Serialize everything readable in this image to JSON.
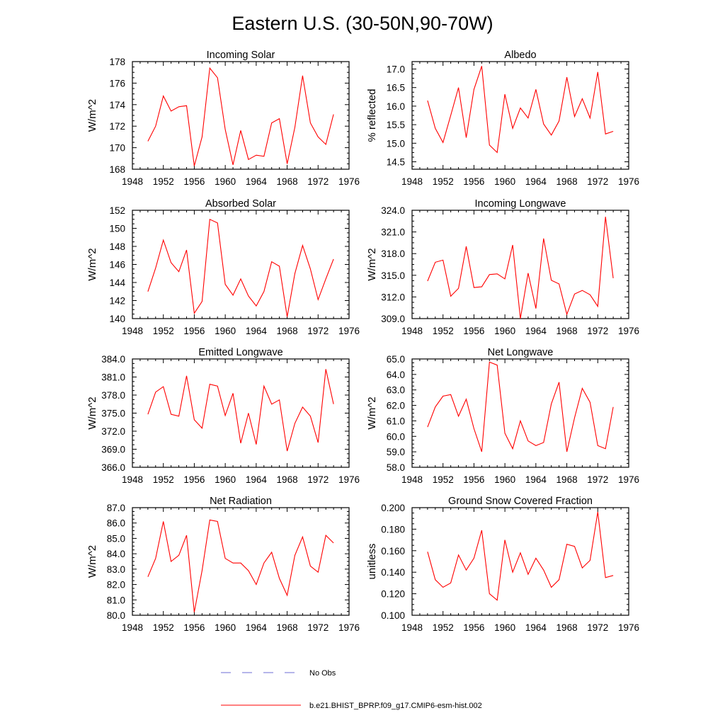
{
  "title": "Eastern U.S. (30-50N,90-70W)",
  "colors": {
    "series": "#ff0000",
    "obs": "#6b6bd6",
    "axis": "#000000"
  },
  "chart_data": [
    {
      "type": "line",
      "title": "Incoming Solar",
      "ylabel": "W/m^2",
      "xlim": [
        1948,
        1976
      ],
      "ylim": [
        168,
        178
      ],
      "x_ticks": [
        "1948",
        "1952",
        "1956",
        "1960",
        "1964",
        "1968",
        "1972",
        "1976"
      ],
      "y_ticks": [
        "168",
        "170",
        "172",
        "174",
        "176",
        "178"
      ],
      "x": [
        1950,
        1951,
        1952,
        1953,
        1954,
        1955,
        1956,
        1957,
        1958,
        1959,
        1960,
        1961,
        1962,
        1963,
        1964,
        1965,
        1966,
        1967,
        1968,
        1969,
        1970,
        1971,
        1972,
        1973,
        1974
      ],
      "values": [
        170.6,
        172.0,
        174.8,
        173.4,
        173.8,
        173.9,
        168.3,
        171.0,
        177.4,
        176.5,
        171.7,
        168.4,
        171.6,
        168.9,
        169.3,
        169.2,
        172.3,
        172.7,
        168.5,
        171.9,
        176.7,
        172.3,
        171.0,
        170.3,
        173.1
      ]
    },
    {
      "type": "line",
      "title": "Albedo",
      "ylabel": "% reflected",
      "xlim": [
        1948,
        1976
      ],
      "ylim": [
        14.3,
        17.2
      ],
      "x_ticks": [
        "1948",
        "1952",
        "1956",
        "1960",
        "1964",
        "1968",
        "1972",
        "1976"
      ],
      "y_ticks": [
        "14.5",
        "15.0",
        "15.5",
        "16.0",
        "16.5",
        "17.0"
      ],
      "x": [
        1950,
        1951,
        1952,
        1953,
        1954,
        1955,
        1956,
        1957,
        1958,
        1959,
        1960,
        1961,
        1962,
        1963,
        1964,
        1965,
        1966,
        1967,
        1968,
        1969,
        1970,
        1971,
        1972,
        1973,
        1974
      ],
      "values": [
        16.15,
        15.4,
        15.02,
        15.75,
        16.5,
        15.15,
        16.45,
        17.08,
        14.95,
        14.75,
        16.32,
        15.4,
        15.95,
        15.68,
        16.45,
        15.52,
        15.22,
        15.6,
        16.78,
        15.72,
        16.2,
        15.68,
        16.92,
        15.25,
        15.32
      ]
    },
    {
      "type": "line",
      "title": "Absorbed Solar",
      "ylabel": "W/m^2",
      "xlim": [
        1948,
        1976
      ],
      "ylim": [
        140,
        152
      ],
      "x_ticks": [
        "1948",
        "1952",
        "1956",
        "1960",
        "1964",
        "1968",
        "1972",
        "1976"
      ],
      "y_ticks": [
        "140",
        "142",
        "144",
        "146",
        "148",
        "150",
        "152"
      ],
      "x": [
        1950,
        1951,
        1952,
        1953,
        1954,
        1955,
        1956,
        1957,
        1958,
        1959,
        1960,
        1961,
        1962,
        1963,
        1964,
        1965,
        1966,
        1967,
        1968,
        1969,
        1970,
        1971,
        1972,
        1973,
        1974
      ],
      "values": [
        143.0,
        145.6,
        148.7,
        146.2,
        145.2,
        147.6,
        140.6,
        141.9,
        151.0,
        150.6,
        143.8,
        142.6,
        144.4,
        142.5,
        141.4,
        143.0,
        146.3,
        145.8,
        140.2,
        145.0,
        148.1,
        145.5,
        142.1,
        144.4,
        146.6
      ]
    },
    {
      "type": "line",
      "title": "Incoming Longwave",
      "ylabel": "W/m^2",
      "xlim": [
        1948,
        1976
      ],
      "ylim": [
        309,
        324
      ],
      "x_ticks": [
        "1948",
        "1952",
        "1956",
        "1960",
        "1964",
        "1968",
        "1972",
        "1976"
      ],
      "y_ticks": [
        "309.0",
        "312.0",
        "315.0",
        "318.0",
        "321.0",
        "324.0"
      ],
      "x": [
        1950,
        1951,
        1952,
        1953,
        1954,
        1955,
        1956,
        1957,
        1958,
        1959,
        1960,
        1961,
        1962,
        1963,
        1964,
        1965,
        1966,
        1967,
        1968,
        1969,
        1970,
        1971,
        1972,
        1973,
        1974
      ],
      "values": [
        314.2,
        316.8,
        317.1,
        312.1,
        313.2,
        319.0,
        313.3,
        313.4,
        315.1,
        315.2,
        314.5,
        319.2,
        309.0,
        315.3,
        310.4,
        320.1,
        314.3,
        313.8,
        309.6,
        312.4,
        312.9,
        312.3,
        310.7,
        323.1,
        314.6
      ]
    },
    {
      "type": "line",
      "title": "Emitted Longwave",
      "ylabel": "W/m^2",
      "xlim": [
        1948,
        1976
      ],
      "ylim": [
        366,
        384
      ],
      "x_ticks": [
        "1948",
        "1952",
        "1956",
        "1960",
        "1964",
        "1968",
        "1972",
        "1976"
      ],
      "y_ticks": [
        "366.0",
        "369.0",
        "372.0",
        "375.0",
        "378.0",
        "381.0",
        "384.0"
      ],
      "x": [
        1950,
        1951,
        1952,
        1953,
        1954,
        1955,
        1956,
        1957,
        1958,
        1959,
        1960,
        1961,
        1962,
        1963,
        1964,
        1965,
        1966,
        1967,
        1968,
        1969,
        1970,
        1971,
        1972,
        1973,
        1974
      ],
      "values": [
        374.8,
        378.5,
        379.4,
        374.8,
        374.5,
        381.2,
        373.9,
        372.5,
        379.8,
        379.5,
        374.6,
        378.3,
        370.0,
        375.0,
        369.8,
        379.5,
        376.5,
        377.2,
        368.7,
        373.3,
        376.0,
        374.5,
        370.1,
        382.3,
        376.5
      ]
    },
    {
      "type": "line",
      "title": "Net Longwave",
      "ylabel": "W/m^2",
      "xlim": [
        1948,
        1976
      ],
      "ylim": [
        58,
        65
      ],
      "x_ticks": [
        "1948",
        "1952",
        "1956",
        "1960",
        "1964",
        "1968",
        "1972",
        "1976"
      ],
      "y_ticks": [
        "58.0",
        "59.0",
        "60.0",
        "61.0",
        "62.0",
        "63.0",
        "64.0",
        "65.0"
      ],
      "x": [
        1950,
        1951,
        1952,
        1953,
        1954,
        1955,
        1956,
        1957,
        1958,
        1959,
        1960,
        1961,
        1962,
        1963,
        1964,
        1965,
        1966,
        1967,
        1968,
        1969,
        1970,
        1971,
        1972,
        1973,
        1974
      ],
      "values": [
        60.6,
        61.9,
        62.6,
        62.7,
        61.3,
        62.4,
        60.5,
        59.0,
        64.8,
        64.6,
        60.2,
        59.2,
        61.0,
        59.7,
        59.4,
        59.6,
        62.1,
        63.5,
        59.0,
        61.2,
        63.1,
        62.2,
        59.4,
        59.2,
        61.9
      ]
    },
    {
      "type": "line",
      "title": "Net Radiation",
      "ylabel": "W/m^2",
      "xlim": [
        1948,
        1976
      ],
      "ylim": [
        80,
        87
      ],
      "x_ticks": [
        "1948",
        "1952",
        "1956",
        "1960",
        "1964",
        "1968",
        "1972",
        "1976"
      ],
      "y_ticks": [
        "80.0",
        "81.0",
        "82.0",
        "83.0",
        "84.0",
        "85.0",
        "86.0",
        "87.0"
      ],
      "x": [
        1950,
        1951,
        1952,
        1953,
        1954,
        1955,
        1956,
        1957,
        1958,
        1959,
        1960,
        1961,
        1962,
        1963,
        1964,
        1965,
        1966,
        1967,
        1968,
        1969,
        1970,
        1971,
        1972,
        1973,
        1974
      ],
      "values": [
        82.5,
        83.7,
        86.1,
        83.5,
        83.9,
        85.2,
        80.2,
        82.9,
        86.2,
        86.1,
        83.7,
        83.4,
        83.4,
        82.9,
        82.0,
        83.4,
        84.1,
        82.4,
        81.3,
        83.9,
        85.1,
        83.2,
        82.8,
        85.2,
        84.7
      ]
    },
    {
      "type": "line",
      "title": "Ground Snow Covered Fraction",
      "ylabel": "unitless",
      "xlim": [
        1948,
        1976
      ],
      "ylim": [
        0.1,
        0.2
      ],
      "x_ticks": [
        "1948",
        "1952",
        "1956",
        "1960",
        "1964",
        "1968",
        "1972",
        "1976"
      ],
      "y_ticks": [
        "0.100",
        "0.120",
        "0.140",
        "0.160",
        "0.180",
        "0.200"
      ],
      "x": [
        1950,
        1951,
        1952,
        1953,
        1954,
        1955,
        1956,
        1957,
        1958,
        1959,
        1960,
        1961,
        1962,
        1963,
        1964,
        1965,
        1966,
        1967,
        1968,
        1969,
        1970,
        1971,
        1972,
        1973,
        1974
      ],
      "values": [
        0.159,
        0.133,
        0.126,
        0.13,
        0.156,
        0.142,
        0.153,
        0.179,
        0.12,
        0.114,
        0.17,
        0.14,
        0.158,
        0.138,
        0.153,
        0.142,
        0.126,
        0.133,
        0.166,
        0.164,
        0.144,
        0.151,
        0.196,
        0.135,
        0.137
      ]
    }
  ],
  "legend": [
    {
      "label": "No Obs",
      "style": "dashed",
      "color": "#6b6bd6"
    },
    {
      "label": "b.e21.BHIST_BPRP.f09_g17.CMIP6-esm-hist.002",
      "style": "solid",
      "color": "#ff0000"
    }
  ]
}
